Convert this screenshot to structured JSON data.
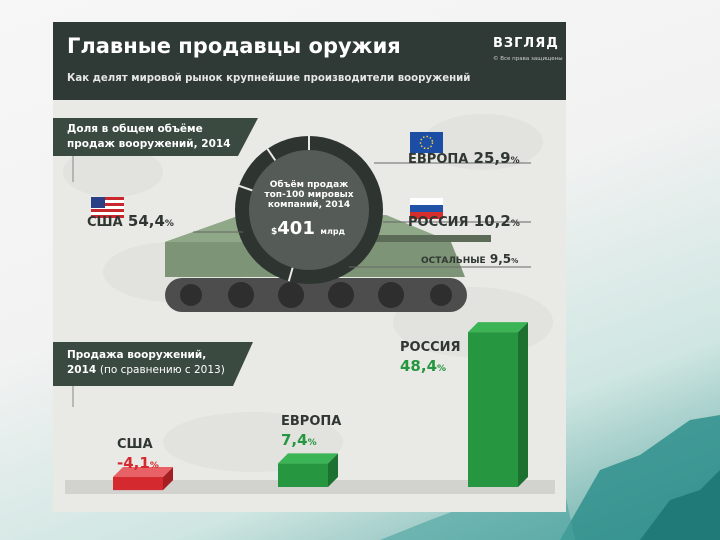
{
  "header": {
    "title": "Главные продавцы оружия",
    "subtitle": "Как делят мировой рынок крупнейшие производители вооружений",
    "brand": "ВЗГЛЯД",
    "brand_sub": "© Все права защищены"
  },
  "share_section": {
    "label_line1": "Доля в общем объёме",
    "label_line2": "продаж вооружений, 2014"
  },
  "center": {
    "line1": "Объём продаж",
    "line2": "топ-100 мировых",
    "line3": "компаний, 2014",
    "currency": "$",
    "value": "401",
    "unit": "млрд"
  },
  "shares": {
    "usa": {
      "name": "США",
      "value": "54,4",
      "unit": "%"
    },
    "europe": {
      "name": "ЕВРОПА",
      "value": "25,9",
      "unit": "%"
    },
    "russia": {
      "name": "РОССИЯ",
      "value": "10,2",
      "unit": "%"
    },
    "others": {
      "name": "ОСТАЛЬНЫЕ",
      "value": "9,5",
      "unit": "%"
    }
  },
  "change_section": {
    "label_line1": "Продажа вооружений,",
    "label_line2_bold": "2014",
    "label_line2_light": "(по сравнению с 2013)"
  },
  "changes": {
    "usa": {
      "name": "США",
      "value": "-4,1",
      "unit": "%"
    },
    "europe": {
      "name": "ЕВРОПА",
      "value": "7,4",
      "unit": "%"
    },
    "russia": {
      "name": "РОССИЯ",
      "value": "48,4",
      "unit": "%"
    }
  },
  "colors": {
    "header": "#2f3935",
    "banner": "#3a4a40",
    "green": "#279640",
    "red": "#d4292f",
    "tank": "#7d9576"
  },
  "chart_data": [
    {
      "type": "pie",
      "title": "Доля в общем объёме продаж вооружений, 2014",
      "categories": [
        "США",
        "ЕВРОПА",
        "РОССИЯ",
        "ОСТАЛЬНЫЕ"
      ],
      "values": [
        54.4,
        25.9,
        10.2,
        9.5
      ],
      "total_label": "Объём продаж топ-100 мировых компаний, 2014: $401 млрд"
    },
    {
      "type": "bar",
      "title": "Продажа вооружений, 2014 (по сравнению с 2013)",
      "categories": [
        "США",
        "ЕВРОПА",
        "РОССИЯ"
      ],
      "values": [
        -4.1,
        7.4,
        48.4
      ],
      "ylabel": "%"
    }
  ]
}
